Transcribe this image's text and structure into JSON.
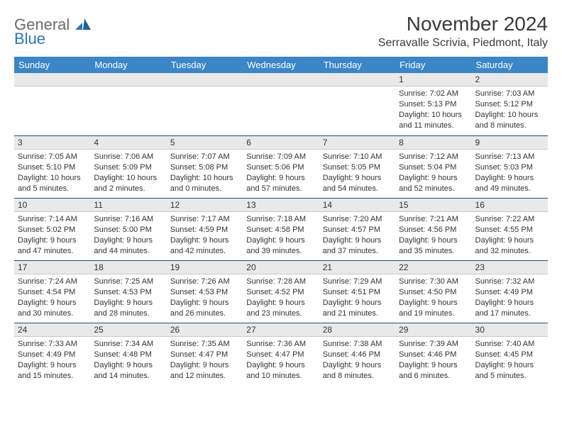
{
  "logo": {
    "word1": "General",
    "word2": "Blue"
  },
  "title": "November 2024",
  "location": "Serravalle Scrivia, Piedmont, Italy",
  "colors": {
    "header_bg": "#3b86c6",
    "header_text": "#ffffff",
    "daynum_bg": "#e9e9e9",
    "row_border": "#1f4f7a",
    "logo_gray": "#6a6a6a",
    "logo_blue": "#2a77bb",
    "text": "#333333"
  },
  "weekdays": [
    "Sunday",
    "Monday",
    "Tuesday",
    "Wednesday",
    "Thursday",
    "Friday",
    "Saturday"
  ],
  "weeks": [
    [
      {
        "n": "",
        "sr": "",
        "ss": "",
        "dl": ""
      },
      {
        "n": "",
        "sr": "",
        "ss": "",
        "dl": ""
      },
      {
        "n": "",
        "sr": "",
        "ss": "",
        "dl": ""
      },
      {
        "n": "",
        "sr": "",
        "ss": "",
        "dl": ""
      },
      {
        "n": "",
        "sr": "",
        "ss": "",
        "dl": ""
      },
      {
        "n": "1",
        "sr": "Sunrise: 7:02 AM",
        "ss": "Sunset: 5:13 PM",
        "dl": "Daylight: 10 hours and 11 minutes."
      },
      {
        "n": "2",
        "sr": "Sunrise: 7:03 AM",
        "ss": "Sunset: 5:12 PM",
        "dl": "Daylight: 10 hours and 8 minutes."
      }
    ],
    [
      {
        "n": "3",
        "sr": "Sunrise: 7:05 AM",
        "ss": "Sunset: 5:10 PM",
        "dl": "Daylight: 10 hours and 5 minutes."
      },
      {
        "n": "4",
        "sr": "Sunrise: 7:06 AM",
        "ss": "Sunset: 5:09 PM",
        "dl": "Daylight: 10 hours and 2 minutes."
      },
      {
        "n": "5",
        "sr": "Sunrise: 7:07 AM",
        "ss": "Sunset: 5:08 PM",
        "dl": "Daylight: 10 hours and 0 minutes."
      },
      {
        "n": "6",
        "sr": "Sunrise: 7:09 AM",
        "ss": "Sunset: 5:06 PM",
        "dl": "Daylight: 9 hours and 57 minutes."
      },
      {
        "n": "7",
        "sr": "Sunrise: 7:10 AM",
        "ss": "Sunset: 5:05 PM",
        "dl": "Daylight: 9 hours and 54 minutes."
      },
      {
        "n": "8",
        "sr": "Sunrise: 7:12 AM",
        "ss": "Sunset: 5:04 PM",
        "dl": "Daylight: 9 hours and 52 minutes."
      },
      {
        "n": "9",
        "sr": "Sunrise: 7:13 AM",
        "ss": "Sunset: 5:03 PM",
        "dl": "Daylight: 9 hours and 49 minutes."
      }
    ],
    [
      {
        "n": "10",
        "sr": "Sunrise: 7:14 AM",
        "ss": "Sunset: 5:02 PM",
        "dl": "Daylight: 9 hours and 47 minutes."
      },
      {
        "n": "11",
        "sr": "Sunrise: 7:16 AM",
        "ss": "Sunset: 5:00 PM",
        "dl": "Daylight: 9 hours and 44 minutes."
      },
      {
        "n": "12",
        "sr": "Sunrise: 7:17 AM",
        "ss": "Sunset: 4:59 PM",
        "dl": "Daylight: 9 hours and 42 minutes."
      },
      {
        "n": "13",
        "sr": "Sunrise: 7:18 AM",
        "ss": "Sunset: 4:58 PM",
        "dl": "Daylight: 9 hours and 39 minutes."
      },
      {
        "n": "14",
        "sr": "Sunrise: 7:20 AM",
        "ss": "Sunset: 4:57 PM",
        "dl": "Daylight: 9 hours and 37 minutes."
      },
      {
        "n": "15",
        "sr": "Sunrise: 7:21 AM",
        "ss": "Sunset: 4:56 PM",
        "dl": "Daylight: 9 hours and 35 minutes."
      },
      {
        "n": "16",
        "sr": "Sunrise: 7:22 AM",
        "ss": "Sunset: 4:55 PM",
        "dl": "Daylight: 9 hours and 32 minutes."
      }
    ],
    [
      {
        "n": "17",
        "sr": "Sunrise: 7:24 AM",
        "ss": "Sunset: 4:54 PM",
        "dl": "Daylight: 9 hours and 30 minutes."
      },
      {
        "n": "18",
        "sr": "Sunrise: 7:25 AM",
        "ss": "Sunset: 4:53 PM",
        "dl": "Daylight: 9 hours and 28 minutes."
      },
      {
        "n": "19",
        "sr": "Sunrise: 7:26 AM",
        "ss": "Sunset: 4:53 PM",
        "dl": "Daylight: 9 hours and 26 minutes."
      },
      {
        "n": "20",
        "sr": "Sunrise: 7:28 AM",
        "ss": "Sunset: 4:52 PM",
        "dl": "Daylight: 9 hours and 23 minutes."
      },
      {
        "n": "21",
        "sr": "Sunrise: 7:29 AM",
        "ss": "Sunset: 4:51 PM",
        "dl": "Daylight: 9 hours and 21 minutes."
      },
      {
        "n": "22",
        "sr": "Sunrise: 7:30 AM",
        "ss": "Sunset: 4:50 PM",
        "dl": "Daylight: 9 hours and 19 minutes."
      },
      {
        "n": "23",
        "sr": "Sunrise: 7:32 AM",
        "ss": "Sunset: 4:49 PM",
        "dl": "Daylight: 9 hours and 17 minutes."
      }
    ],
    [
      {
        "n": "24",
        "sr": "Sunrise: 7:33 AM",
        "ss": "Sunset: 4:49 PM",
        "dl": "Daylight: 9 hours and 15 minutes."
      },
      {
        "n": "25",
        "sr": "Sunrise: 7:34 AM",
        "ss": "Sunset: 4:48 PM",
        "dl": "Daylight: 9 hours and 14 minutes."
      },
      {
        "n": "26",
        "sr": "Sunrise: 7:35 AM",
        "ss": "Sunset: 4:47 PM",
        "dl": "Daylight: 9 hours and 12 minutes."
      },
      {
        "n": "27",
        "sr": "Sunrise: 7:36 AM",
        "ss": "Sunset: 4:47 PM",
        "dl": "Daylight: 9 hours and 10 minutes."
      },
      {
        "n": "28",
        "sr": "Sunrise: 7:38 AM",
        "ss": "Sunset: 4:46 PM",
        "dl": "Daylight: 9 hours and 8 minutes."
      },
      {
        "n": "29",
        "sr": "Sunrise: 7:39 AM",
        "ss": "Sunset: 4:46 PM",
        "dl": "Daylight: 9 hours and 6 minutes."
      },
      {
        "n": "30",
        "sr": "Sunrise: 7:40 AM",
        "ss": "Sunset: 4:45 PM",
        "dl": "Daylight: 9 hours and 5 minutes."
      }
    ]
  ]
}
